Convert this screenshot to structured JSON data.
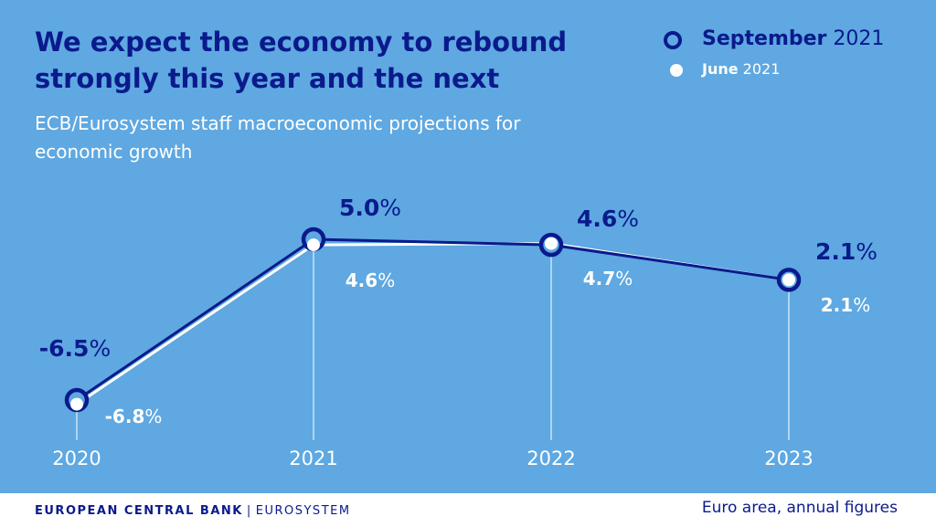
{
  "header": {
    "title": "We expect the economy to rebound strongly this year and the next",
    "subtitle": "ECB/Eurosystem staff macroeconomic projections for economic growth"
  },
  "legend": [
    {
      "bold": "September",
      "rest": " 2021"
    },
    {
      "bold": "June",
      "rest": " 2021"
    }
  ],
  "colors": {
    "background": "#5fa8e1",
    "september": "#0a1a8c",
    "june": "#ffffff"
  },
  "chart_data": {
    "type": "line",
    "categories": [
      "2020",
      "2021",
      "2022",
      "2023"
    ],
    "series": [
      {
        "name": "September 2021",
        "values": [
          -6.5,
          5.0,
          4.6,
          2.1
        ],
        "labels": [
          {
            "num": "-6.5",
            "unit": "%"
          },
          {
            "num": "5.0",
            "unit": "%"
          },
          {
            "num": "4.6",
            "unit": "%"
          },
          {
            "num": "2.1",
            "unit": "%"
          }
        ]
      },
      {
        "name": "June 2021",
        "values": [
          -6.8,
          4.6,
          4.7,
          2.1
        ],
        "labels": [
          {
            "num": "-6.8",
            "unit": "%"
          },
          {
            "num": "4.6",
            "unit": "%"
          },
          {
            "num": "4.7",
            "unit": "%"
          },
          {
            "num": "2.1",
            "unit": "%"
          }
        ]
      }
    ],
    "ylim": [
      -7,
      6
    ],
    "grid": false
  },
  "footer": {
    "org": "EUROPEAN CENTRAL BANK",
    "separator": "|",
    "system": "EUROSYSTEM",
    "note": "Euro area, annual figures"
  }
}
